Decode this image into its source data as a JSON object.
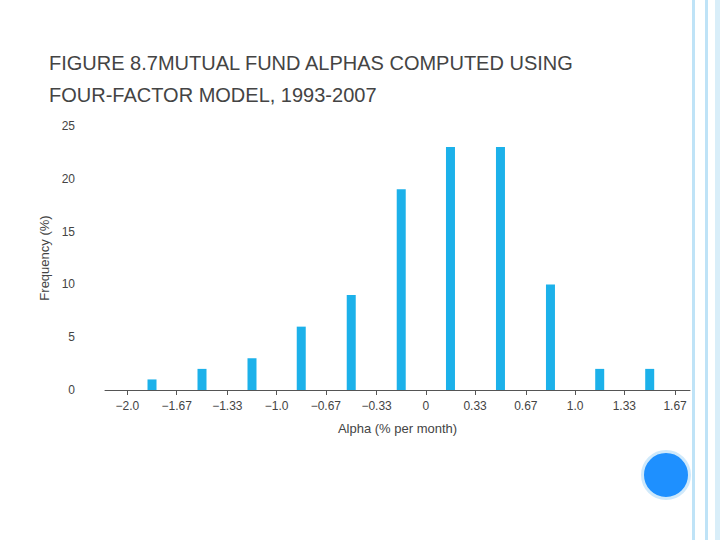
{
  "chart_data": {
    "type": "bar",
    "title": "FIGURE 8.7MUTUAL FUND ALPHAS COMPUTED USING FOUR-FACTOR MODEL, 1993-2007",
    "xlabel": "Alpha (% per month)",
    "ylabel": "Frequency (%)",
    "bins": [
      -2.0,
      -1.67,
      -1.33,
      -1.0,
      -0.67,
      -0.33,
      0,
      0.33,
      0.67,
      1.0,
      1.33,
      1.67
    ],
    "values": [
      1,
      2,
      3,
      6,
      9,
      19,
      23,
      23,
      10,
      2,
      2
    ],
    "color": "#1cb1ea",
    "xlim": [
      -2.15,
      1.77
    ],
    "xticks": [
      {
        "value": -2.0,
        "label": "−2.0"
      },
      {
        "value": -1.67,
        "label": "−1.67"
      },
      {
        "value": -1.33,
        "label": "−1.33"
      },
      {
        "value": -1.0,
        "label": "−1.0"
      },
      {
        "value": -0.67,
        "label": "−0.67"
      },
      {
        "value": -0.33,
        "label": "−0.33"
      },
      0,
      0.33,
      0.67,
      {
        "value": 1.0,
        "label": "1.0"
      },
      1.33,
      1.67
    ],
    "ylim": [
      0,
      25
    ],
    "yticks": [
      0,
      5,
      10,
      15,
      20,
      25
    ],
    "grid": false
  }
}
